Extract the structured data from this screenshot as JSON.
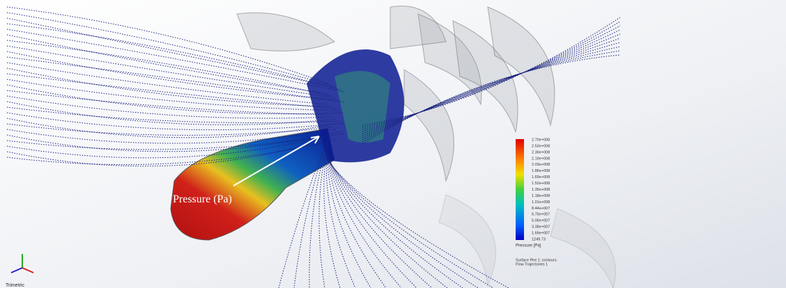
{
  "annotation": "Pressure (Pa)",
  "legend": {
    "labels": [
      "2.70e+008",
      "2.53e+008",
      "2.36e+008",
      "2.19e+008",
      "2.03e+008",
      "1.86e+008",
      "1.69e+008",
      "1.52e+008",
      "1.35e+008",
      "1.18e+008",
      "1.01e+008",
      "8.44e+007",
      "6.75e+007",
      "5.06e+007",
      "3.38e+007",
      "1.69e+007",
      "1249.73"
    ],
    "title": "Pressure [Pa]",
    "notes": [
      "Surface Plot 1: contours",
      "Flow Trajectories 1"
    ]
  },
  "view_label": "Trimetric"
}
